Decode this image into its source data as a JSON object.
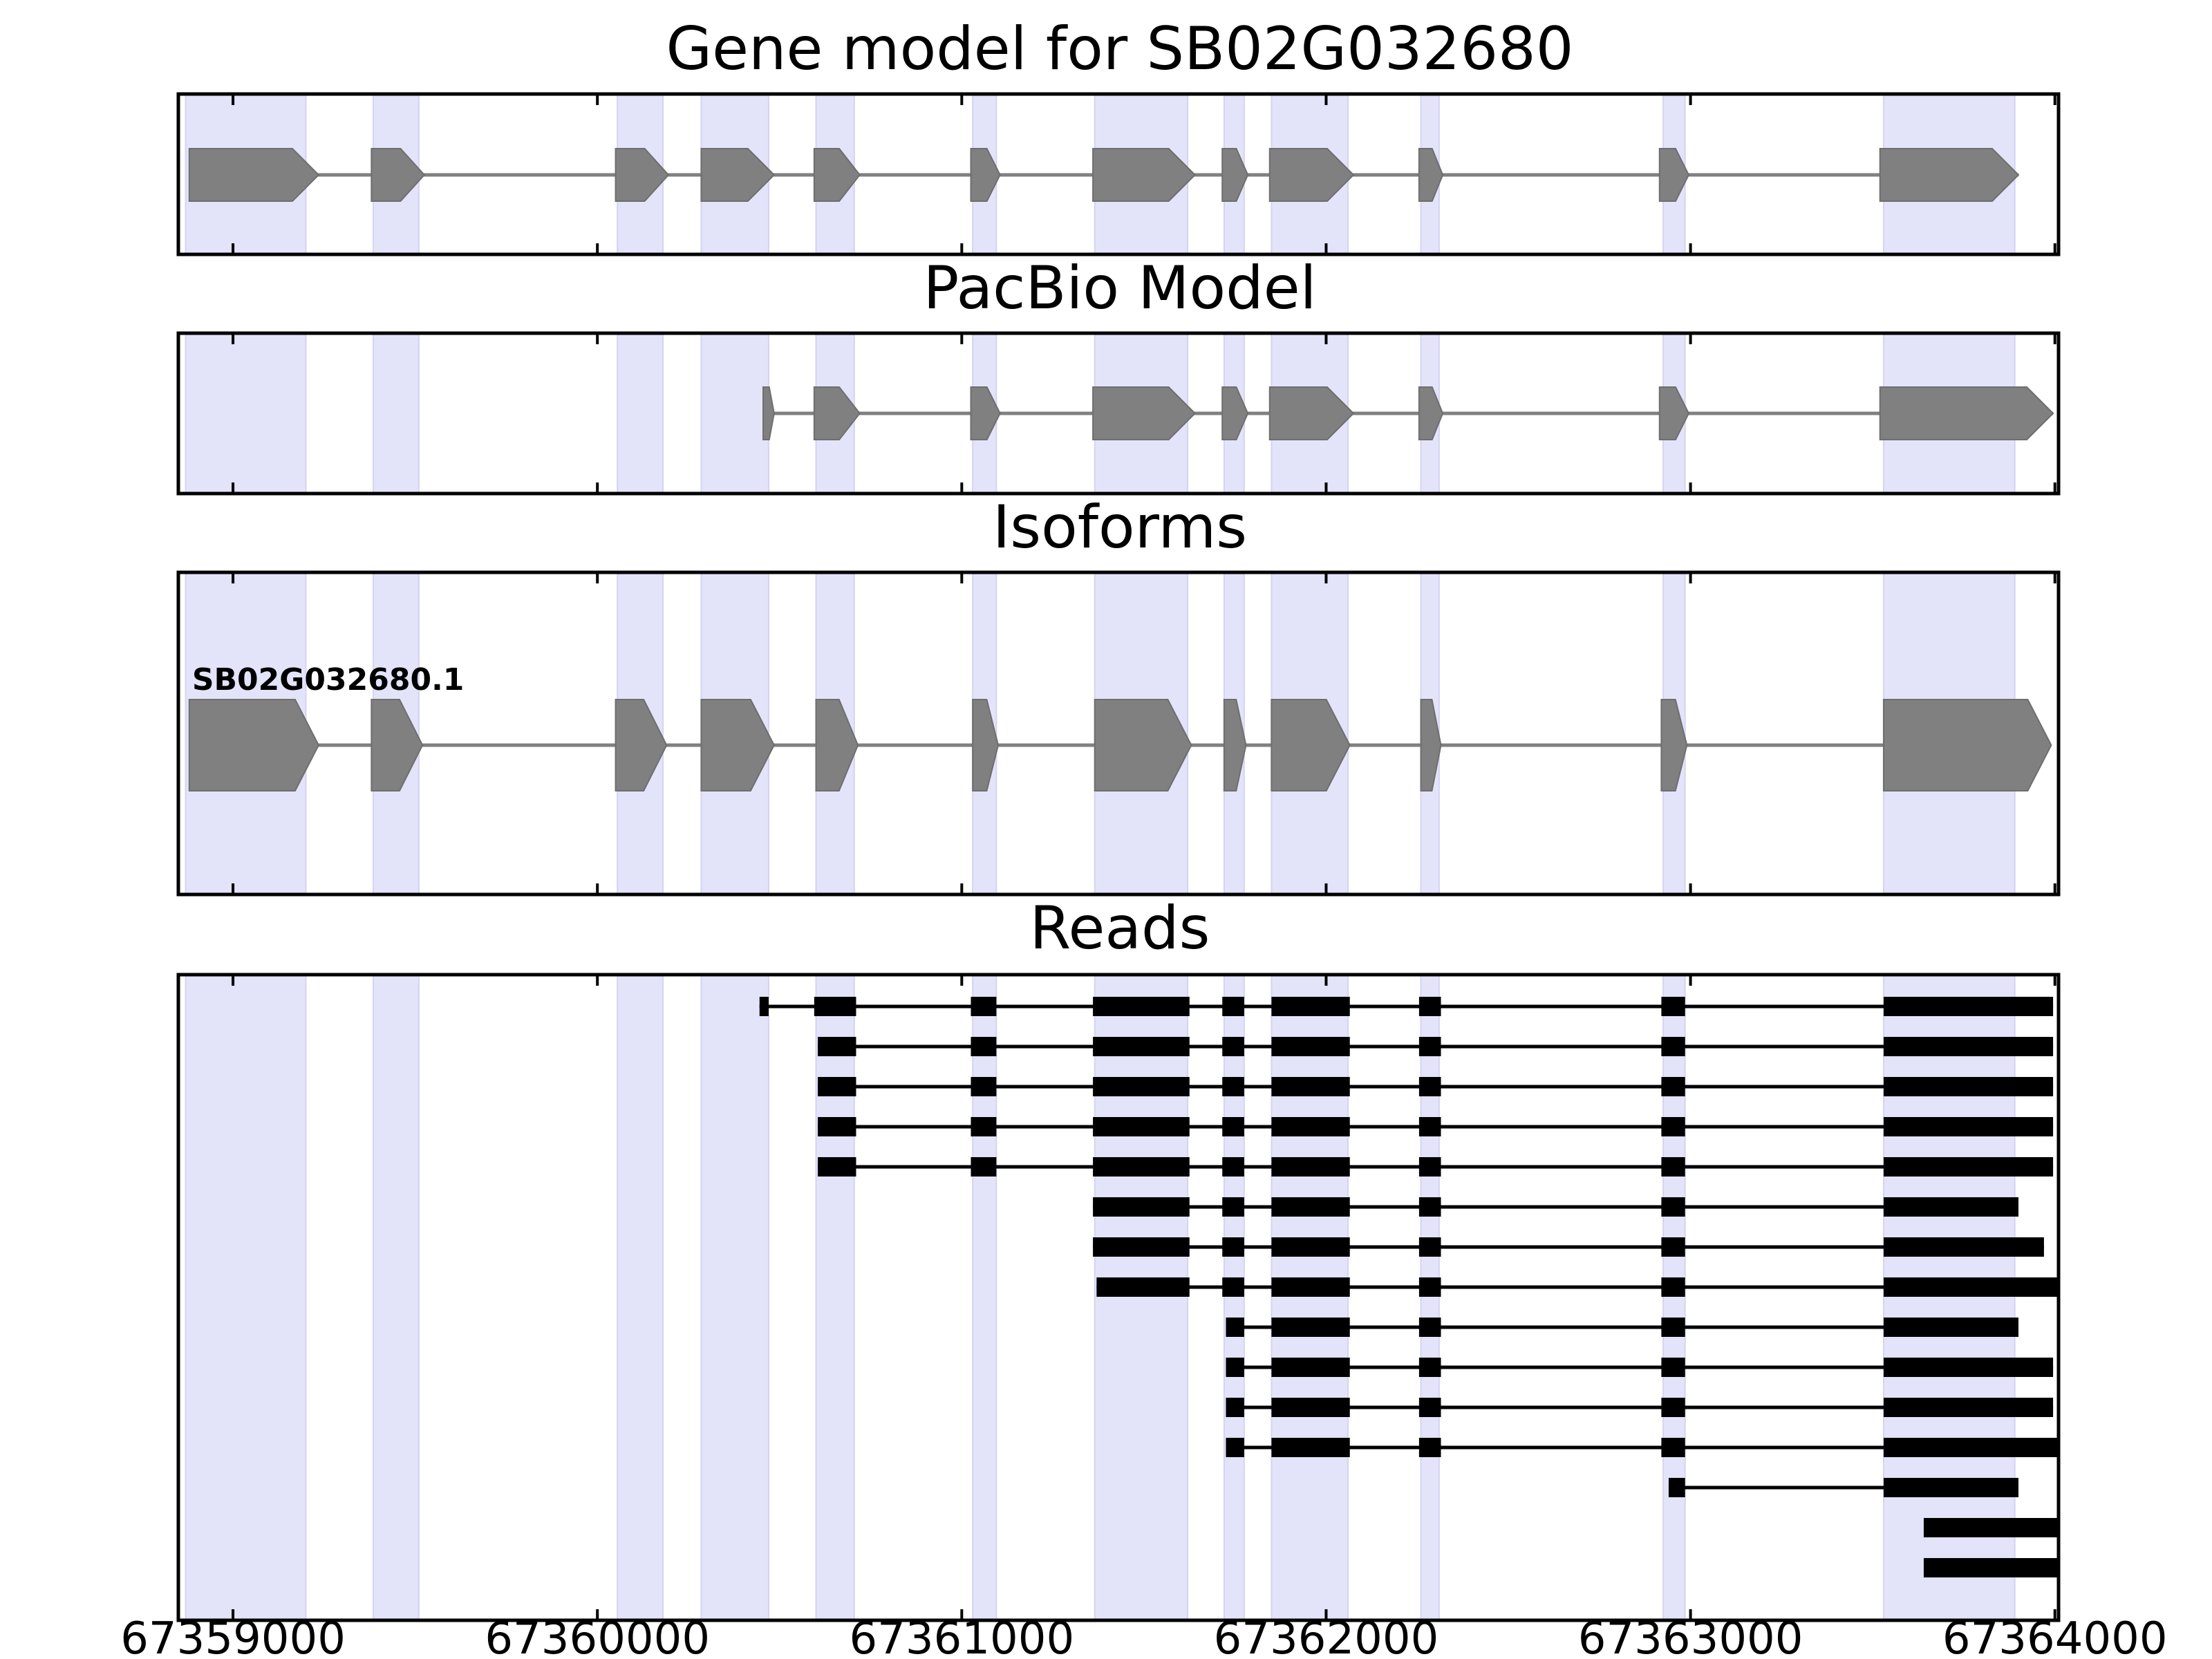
{
  "chart_data": {
    "type": "gene_model",
    "x_unit": "genomic position (bp)",
    "xlim": [
      67358850,
      67364010
    ],
    "xticks": [
      67359000,
      67360000,
      67361000,
      67362000,
      67363000,
      67364000
    ],
    "xtick_labels": [
      "67359000",
      "67360000",
      "67361000",
      "67362000",
      "67363000",
      "67364000"
    ],
    "colors": {
      "exon_highlight": "#e3e3fa",
      "feature_fill": "#808080",
      "read": "#000000",
      "frame": "#000000"
    },
    "exon_regions": [
      [
        67358870,
        67359200
      ],
      [
        67359385,
        67359510
      ],
      [
        67360055,
        67360180
      ],
      [
        67360285,
        67360470
      ],
      [
        67360600,
        67360705
      ],
      [
        67361030,
        67361095
      ],
      [
        67361365,
        67361620
      ],
      [
        67361720,
        67361775
      ],
      [
        67361850,
        67362060
      ],
      [
        67362260,
        67362310
      ],
      [
        67362925,
        67362985
      ],
      [
        67363530,
        67363890
      ]
    ],
    "panels": [
      {
        "title": "Gene model for SB02G032680",
        "features": [
          {
            "strand": "+",
            "blocks": [
              [
                67358880,
                67359235
              ],
              [
                67359380,
                67359525
              ],
              [
                67360050,
                67360195
              ],
              [
                67360285,
                67360485
              ],
              [
                67360595,
                67360720
              ],
              [
                67361025,
                67361105
              ],
              [
                67361360,
                67361640
              ],
              [
                67361715,
                67361785
              ],
              [
                67361845,
                67362075
              ],
              [
                67362255,
                67362320
              ],
              [
                67362915,
                67362995
              ],
              [
                67363520,
                67363900
              ]
            ]
          }
        ]
      },
      {
        "title": "PacBio Model",
        "features": [
          {
            "strand": "+",
            "blocks": [
              [
                67360455,
                67360485
              ],
              [
                67360595,
                67360720
              ],
              [
                67361025,
                67361105
              ],
              [
                67361360,
                67361640
              ],
              [
                67361715,
                67361785
              ],
              [
                67361845,
                67362075
              ],
              [
                67362255,
                67362320
              ],
              [
                67362915,
                67362995
              ],
              [
                67363520,
                67363995
              ]
            ]
          }
        ]
      },
      {
        "title": "Isoforms",
        "features": [
          {
            "name": "SB02G032680.1",
            "strand": "+",
            "blocks": [
              [
                67358880,
                67359235
              ],
              [
                67359380,
                67359520
              ],
              [
                67360050,
                67360190
              ],
              [
                67360285,
                67360485
              ],
              [
                67360600,
                67360715
              ],
              [
                67361030,
                67361100
              ],
              [
                67361365,
                67361630
              ],
              [
                67361720,
                67361780
              ],
              [
                67361850,
                67362065
              ],
              [
                67362260,
                67362315
              ],
              [
                67362920,
                67362990
              ],
              [
                67363530,
                67363990
              ]
            ]
          }
        ]
      },
      {
        "title": "Reads",
        "features": [
          {
            "blocks": [
              [
                67360445,
                67360470
              ],
              [
                67360595,
                67360710
              ],
              [
                67361025,
                67361095
              ],
              [
                67361360,
                67361625
              ],
              [
                67361715,
                67361775
              ],
              [
                67361850,
                67362065
              ],
              [
                67362255,
                67362315
              ],
              [
                67362920,
                67362985
              ],
              [
                67363530,
                67363995
              ]
            ]
          },
          {
            "blocks": [
              [
                67360605,
                67360710
              ],
              [
                67361025,
                67361095
              ],
              [
                67361360,
                67361625
              ],
              [
                67361715,
                67361775
              ],
              [
                67361850,
                67362065
              ],
              [
                67362255,
                67362315
              ],
              [
                67362920,
                67362985
              ],
              [
                67363530,
                67363995
              ]
            ]
          },
          {
            "blocks": [
              [
                67360605,
                67360710
              ],
              [
                67361025,
                67361095
              ],
              [
                67361360,
                67361625
              ],
              [
                67361715,
                67361775
              ],
              [
                67361850,
                67362065
              ],
              [
                67362255,
                67362315
              ],
              [
                67362920,
                67362985
              ],
              [
                67363530,
                67363995
              ]
            ]
          },
          {
            "blocks": [
              [
                67360605,
                67360710
              ],
              [
                67361025,
                67361095
              ],
              [
                67361360,
                67361625
              ],
              [
                67361715,
                67361775
              ],
              [
                67361850,
                67362065
              ],
              [
                67362255,
                67362315
              ],
              [
                67362920,
                67362985
              ],
              [
                67363530,
                67363995
              ]
            ]
          },
          {
            "blocks": [
              [
                67360605,
                67360710
              ],
              [
                67361025,
                67361095
              ],
              [
                67361360,
                67361625
              ],
              [
                67361715,
                67361775
              ],
              [
                67361850,
                67362065
              ],
              [
                67362255,
                67362315
              ],
              [
                67362920,
                67362985
              ],
              [
                67363530,
                67363995
              ]
            ]
          },
          {
            "blocks": [
              [
                67361360,
                67361625
              ],
              [
                67361715,
                67361775
              ],
              [
                67361850,
                67362065
              ],
              [
                67362255,
                67362315
              ],
              [
                67362920,
                67362985
              ],
              [
                67363530,
                67363900
              ]
            ]
          },
          {
            "blocks": [
              [
                67361360,
                67361625
              ],
              [
                67361715,
                67361775
              ],
              [
                67361850,
                67362065
              ],
              [
                67362255,
                67362315
              ],
              [
                67362920,
                67362985
              ],
              [
                67363530,
                67363970
              ]
            ]
          },
          {
            "blocks": [
              [
                67361370,
                67361625
              ],
              [
                67361715,
                67361775
              ],
              [
                67361850,
                67362065
              ],
              [
                67362255,
                67362315
              ],
              [
                67362920,
                67362985
              ],
              [
                67363530,
                67364010
              ]
            ]
          },
          {
            "blocks": [
              [
                67361725,
                67361775
              ],
              [
                67361850,
                67362065
              ],
              [
                67362255,
                67362315
              ],
              [
                67362920,
                67362985
              ],
              [
                67363530,
                67363900
              ]
            ]
          },
          {
            "blocks": [
              [
                67361725,
                67361775
              ],
              [
                67361850,
                67362065
              ],
              [
                67362255,
                67362315
              ],
              [
                67362920,
                67362985
              ],
              [
                67363530,
                67363995
              ]
            ]
          },
          {
            "blocks": [
              [
                67361725,
                67361775
              ],
              [
                67361850,
                67362065
              ],
              [
                67362255,
                67362315
              ],
              [
                67362920,
                67362985
              ],
              [
                67363530,
                67363995
              ]
            ]
          },
          {
            "blocks": [
              [
                67361725,
                67361775
              ],
              [
                67361850,
                67362065
              ],
              [
                67362255,
                67362315
              ],
              [
                67362920,
                67362985
              ],
              [
                67363530,
                67364010
              ]
            ]
          },
          {
            "blocks": [
              [
                67362940,
                67362985
              ],
              [
                67363530,
                67363900
              ]
            ]
          },
          {
            "blocks": [
              [
                67363640,
                67364010
              ]
            ]
          },
          {
            "blocks": [
              [
                67363640,
                67364010
              ]
            ]
          }
        ]
      }
    ]
  }
}
